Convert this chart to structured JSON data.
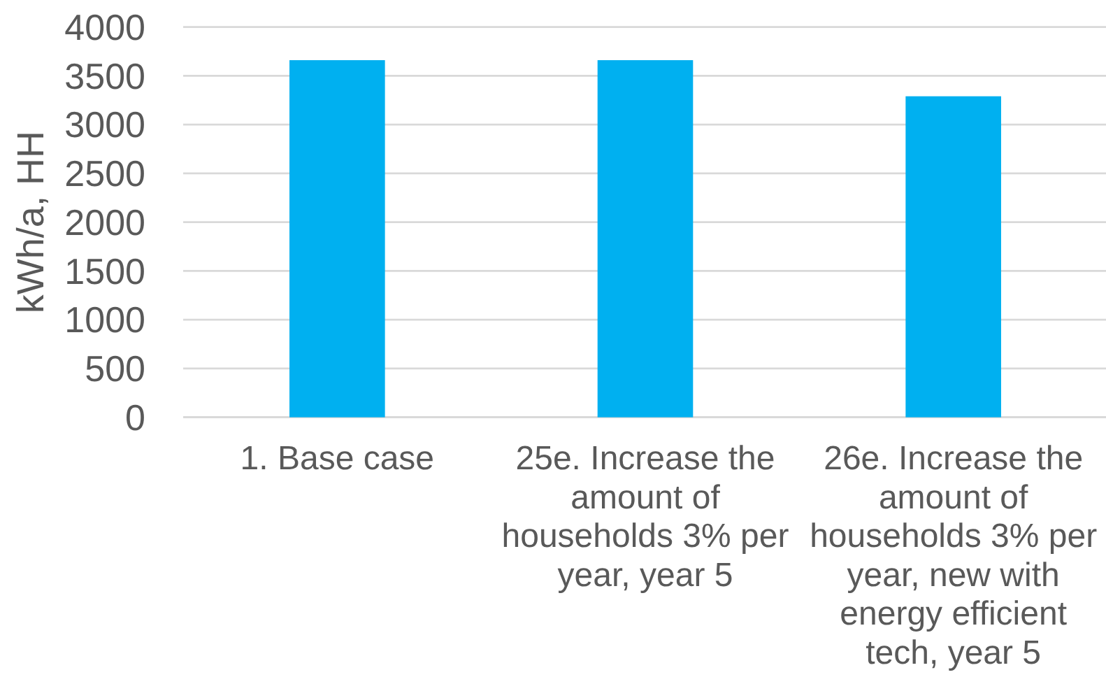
{
  "chart_data": {
    "type": "bar",
    "ylabel": "kWh/a, HH",
    "categories": [
      "1. Base case",
      "25e. Increase the amount of households 3% per year, year 5",
      "26e. Increase the amount of households 3% per year, new with energy efficient tech, year 5"
    ],
    "values": [
      3660,
      3660,
      3290
    ],
    "color": "#00b0f0",
    "ylim": [
      0,
      4000
    ],
    "yticks": [
      0,
      500,
      1000,
      1500,
      2000,
      2500,
      3000,
      3500,
      4000
    ],
    "grid": "y"
  }
}
